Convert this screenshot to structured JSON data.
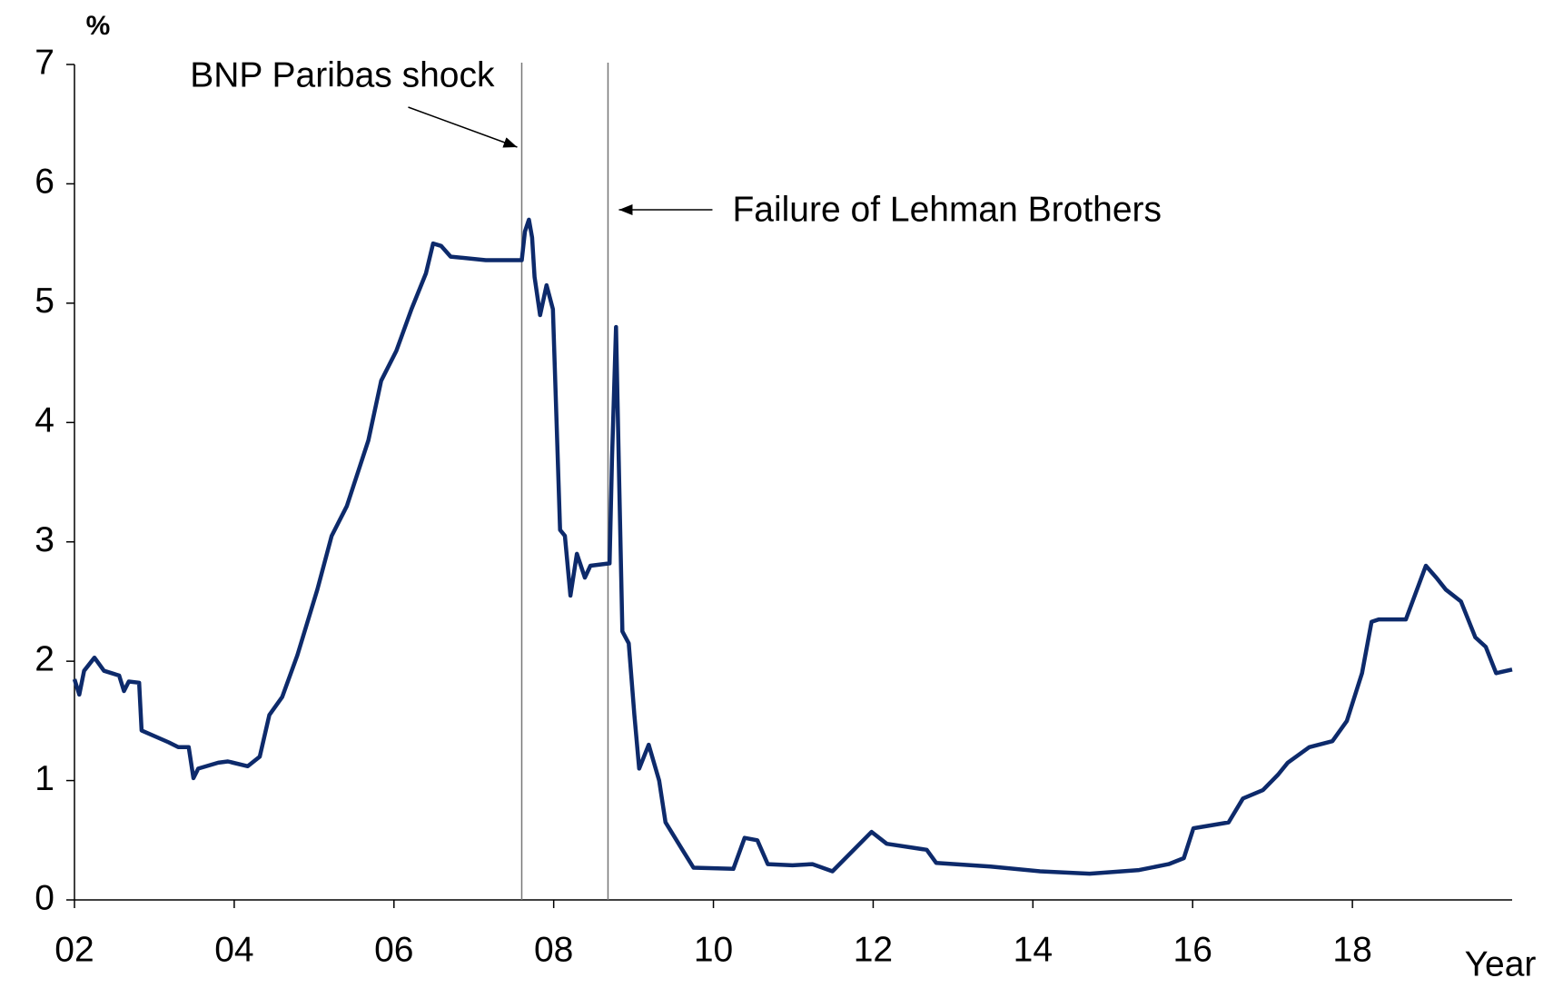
{
  "chart_data": {
    "type": "line",
    "y_label": "%",
    "x_label": "Year",
    "xlim": [
      2002,
      2020
    ],
    "ylim": [
      0,
      7
    ],
    "yticks": [
      0,
      1,
      2,
      3,
      4,
      5,
      6,
      7
    ],
    "xticks": [
      {
        "value": 2002,
        "label": "02"
      },
      {
        "value": 2004,
        "label": "04"
      },
      {
        "value": 2006,
        "label": "06"
      },
      {
        "value": 2008,
        "label": "08"
      },
      {
        "value": 2010,
        "label": "10"
      },
      {
        "value": 2012,
        "label": "12"
      },
      {
        "value": 2014,
        "label": "14"
      },
      {
        "value": 2016,
        "label": "16"
      },
      {
        "value": 2018,
        "label": "18"
      }
    ],
    "annotations": [
      {
        "text": "BNP Paribas shock",
        "x": 2007.6
      },
      {
        "text": "Failure of Lehman Brothers",
        "x": 2008.68
      }
    ],
    "series": [
      {
        "color": "#0d2a6b",
        "x": [
          2002.0,
          2002.06,
          2002.12,
          2002.25,
          2002.37,
          2002.56,
          2002.62,
          2002.68,
          2002.81,
          2002.84,
          2003.18,
          2003.3,
          2003.43,
          2003.49,
          2003.55,
          2003.8,
          2003.92,
          2004.17,
          2004.32,
          2004.44,
          2004.6,
          2004.79,
          2005.04,
          2005.22,
          2005.41,
          2005.68,
          2005.84,
          2006.03,
          2006.22,
          2006.4,
          2006.49,
          2006.59,
          2006.71,
          2007.15,
          2007.6,
          2007.64,
          2007.69,
          2007.73,
          2007.76,
          2007.83,
          2007.91,
          2007.99,
          2008.08,
          2008.14,
          2008.21,
          2008.29,
          2008.39,
          2008.46,
          2008.7,
          2008.73,
          2008.78,
          2008.82,
          2008.86,
          2008.94,
          2009.01,
          2009.07,
          2009.19,
          2009.32,
          2009.4,
          2009.63,
          2009.75,
          2010.25,
          2010.39,
          2010.55,
          2010.68,
          2010.99,
          2011.24,
          2011.49,
          2011.98,
          2012.17,
          2012.67,
          2012.79,
          2013.47,
          2014.09,
          2014.71,
          2015.33,
          2015.7,
          2015.89,
          2016.01,
          2016.45,
          2016.63,
          2016.88,
          2017.07,
          2017.19,
          2017.46,
          2017.75,
          2017.93,
          2018.12,
          2018.24,
          2018.33,
          2018.67,
          2018.92,
          2019.05,
          2019.17,
          2019.36,
          2019.54,
          2019.67,
          2019.8,
          2020.0
        ],
        "values": [
          1.85,
          1.72,
          1.92,
          2.03,
          1.92,
          1.88,
          1.75,
          1.83,
          1.82,
          1.42,
          1.32,
          1.28,
          1.28,
          1.02,
          1.1,
          1.15,
          1.16,
          1.12,
          1.2,
          1.55,
          1.7,
          2.05,
          2.6,
          3.05,
          3.3,
          3.85,
          4.35,
          4.6,
          4.95,
          5.25,
          5.5,
          5.48,
          5.39,
          5.36,
          5.36,
          5.6,
          5.7,
          5.55,
          5.22,
          4.9,
          5.15,
          4.95,
          3.1,
          3.05,
          2.55,
          2.9,
          2.7,
          2.8,
          2.82,
          3.7,
          4.8,
          3.5,
          2.25,
          2.15,
          1.55,
          1.1,
          1.3,
          1.0,
          0.65,
          0.4,
          0.27,
          0.26,
          0.52,
          0.5,
          0.3,
          0.29,
          0.3,
          0.24,
          0.57,
          0.47,
          0.42,
          0.31,
          0.28,
          0.24,
          0.22,
          0.25,
          0.3,
          0.35,
          0.6,
          0.65,
          0.85,
          0.92,
          1.05,
          1.15,
          1.28,
          1.33,
          1.5,
          1.9,
          2.33,
          2.35,
          2.35,
          2.8,
          2.7,
          2.6,
          2.5,
          2.2,
          2.12,
          1.9,
          1.93
        ]
      }
    ]
  }
}
